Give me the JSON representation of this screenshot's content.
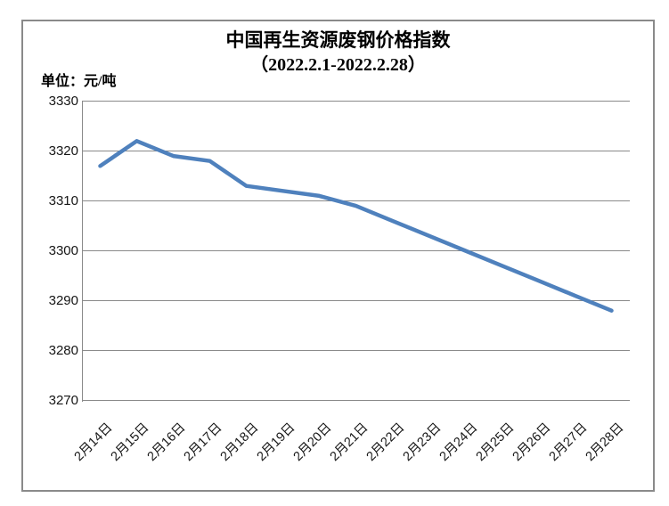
{
  "chart": {
    "title_line1": "中国再生资源废钢价格指数",
    "title_line2": "（2022.2.1-2022.2.28）",
    "unit_label": "单位：元/吨",
    "colors": {
      "line": "#4F81BD",
      "gridline": "#8a8a8a",
      "axis": "#8a8a8a",
      "frame": "#8a8a8a",
      "text": "#151515"
    }
  },
  "chart_data": {
    "type": "line",
    "title": "中国再生资源废钢价格指数（2022.2.1-2022.2.28）",
    "unit": "元/吨",
    "categories": [
      "2月14日",
      "2月15日",
      "2月16日",
      "2月17日",
      "2月18日",
      "2月19日",
      "2月20日",
      "2月21日",
      "2月22日",
      "2月23日",
      "2月24日",
      "2月25日",
      "2月26日",
      "2月27日",
      "2月28日"
    ],
    "values": [
      3317,
      3322,
      3319,
      3318,
      3313,
      3312,
      3311,
      3309,
      3306,
      3303,
      3300,
      3297,
      3294,
      3291,
      3288
    ],
    "ylim": [
      3270,
      3330
    ],
    "ytick_interval": 10,
    "yticks": [
      3330,
      3320,
      3310,
      3300,
      3290,
      3280,
      3270
    ],
    "xlabel": "",
    "ylabel": "元/吨",
    "grid": true,
    "legend": false,
    "series_name": "废钢价格指数"
  }
}
